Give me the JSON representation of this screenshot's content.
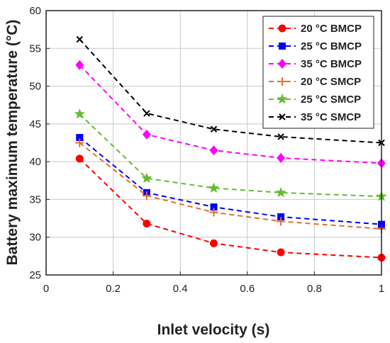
{
  "chart_data": {
    "type": "line",
    "title": "",
    "xlabel": "Inlet velocity (s)",
    "ylabel": "Battery maximum temperature (°C)",
    "xlim": [
      0,
      1
    ],
    "ylim": [
      25,
      60
    ],
    "xticks": [
      0,
      0.2,
      0.4,
      0.6,
      0.8,
      1
    ],
    "xtick_labels": [
      "0",
      "0.2",
      "0.4",
      "0.6",
      "0.8",
      "1"
    ],
    "yticks": [
      25,
      30,
      35,
      40,
      45,
      50,
      55,
      60
    ],
    "ytick_labels": [
      "25",
      "30",
      "35",
      "40",
      "45",
      "50",
      "55",
      "60"
    ],
    "grid": true,
    "legend_position": "top-right",
    "x": [
      0.1,
      0.3,
      0.5,
      0.7,
      1.0
    ],
    "series": [
      {
        "name": "20 °C BMCP",
        "values": [
          40.4,
          31.8,
          29.2,
          28.0,
          27.3
        ],
        "color": "#ff0000",
        "marker": "circle"
      },
      {
        "name": "25 °C BMCP",
        "values": [
          43.2,
          35.9,
          34.0,
          32.7,
          31.7
        ],
        "color": "#0000ff",
        "marker": "square"
      },
      {
        "name": "35 °C BMCP",
        "values": [
          52.8,
          43.6,
          41.5,
          40.5,
          39.8
        ],
        "color": "#ff00ff",
        "marker": "diamond"
      },
      {
        "name": "20 °C SMCP",
        "values": [
          42.5,
          35.5,
          33.3,
          32.1,
          31.1
        ],
        "color": "#e07030",
        "marker": "plus"
      },
      {
        "name": "25 °C SMCP",
        "values": [
          46.3,
          37.8,
          36.5,
          35.9,
          35.4
        ],
        "color": "#66bb33",
        "marker": "star"
      },
      {
        "name": "35 °C SMCP",
        "values": [
          56.2,
          46.4,
          44.3,
          43.3,
          42.5
        ],
        "color": "#000000",
        "marker": "x"
      }
    ]
  }
}
